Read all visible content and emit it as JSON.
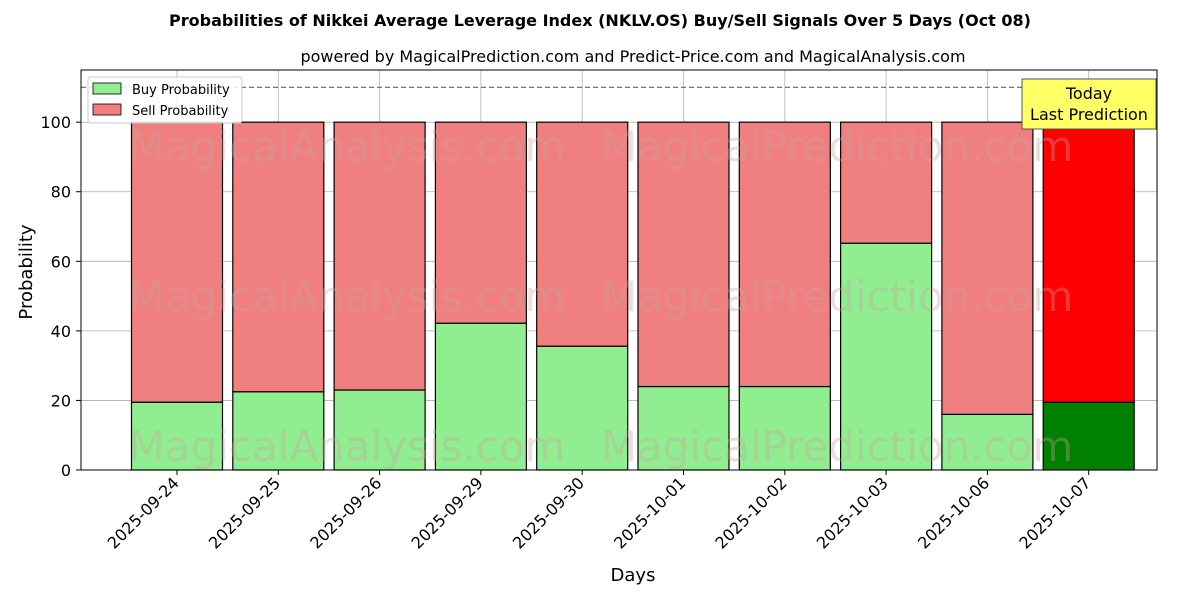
{
  "chart_data": {
    "type": "bar",
    "stacked": true,
    "title": "Probabilities of Nikkei Average Leverage Index (NKLV.OS) Buy/Sell Signals Over 5 Days (Oct 08)",
    "subtitle": "powered by MagicalPrediction.com and Predict-Price.com and MagicalAnalysis.com",
    "xlabel": "Days",
    "ylabel": "Probability",
    "ylim": [
      0,
      115
    ],
    "yticks": [
      "0",
      "20",
      "40",
      "60",
      "80",
      "100"
    ],
    "grid": true,
    "legend_position": "top-left",
    "categories": [
      "2025-09-24",
      "2025-09-25",
      "2025-09-26",
      "2025-09-29",
      "2025-09-30",
      "2025-10-01",
      "2025-10-02",
      "2025-10-03",
      "2025-10-06",
      "2025-10-07"
    ],
    "series": [
      {
        "name": "Buy Probability",
        "color": "#90ee90",
        "highlight_color": "#008000",
        "values": [
          19.5,
          22.5,
          23.0,
          42.2,
          35.6,
          24.0,
          24.0,
          65.2,
          16.0,
          19.5
        ]
      },
      {
        "name": "Sell Probability",
        "color": "#f08080",
        "highlight_color": "#ff0000",
        "values": [
          80.5,
          77.5,
          77.0,
          57.8,
          64.4,
          76.0,
          76.0,
          34.8,
          84.0,
          80.5
        ]
      }
    ],
    "reference_line": {
      "y": 110,
      "style": "dashed"
    },
    "annotation": {
      "line1": "Today",
      "line2": "Last Prediction",
      "color": "#ffff66"
    },
    "watermarks": [
      "MagicalAnalysis.com",
      "MagicalPrediction.com"
    ]
  }
}
